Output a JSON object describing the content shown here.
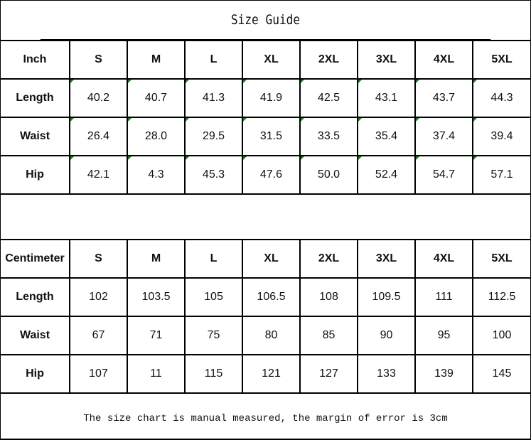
{
  "title": "Size Guide",
  "inch_table": {
    "header": [
      "Inch",
      "S",
      "M",
      "L",
      "XL",
      "2XL",
      "3XL",
      "4XL",
      "5XL"
    ],
    "rows": [
      [
        "Length",
        "40.2",
        "40.7",
        "41.3",
        "41.9",
        "42.5",
        "43.1",
        "43.7",
        "44.3"
      ],
      [
        "Waist",
        "26.4",
        "28.0",
        "29.5",
        "31.5",
        "33.5",
        "35.4",
        "37.4",
        "39.4"
      ],
      [
        "Hip",
        "42.1",
        "4.3",
        "45.3",
        "47.6",
        "50.0",
        "52.4",
        "54.7",
        "57.1"
      ]
    ]
  },
  "cm_table": {
    "header": [
      "Centimeter",
      "S",
      "M",
      "L",
      "XL",
      "2XL",
      "3XL",
      "4XL",
      "5XL"
    ],
    "rows": [
      [
        "Length",
        "102",
        "103.5",
        "105",
        "106.5",
        "108",
        "109.5",
        "111",
        "112.5"
      ],
      [
        "Waist",
        "67",
        "71",
        "75",
        "80",
        "85",
        "90",
        "95",
        "100"
      ],
      [
        "Hip",
        "107",
        "11",
        "115",
        "121",
        "127",
        "133",
        "139",
        "145"
      ]
    ]
  },
  "footer": "The size chart is manual measured, the margin of error is 3cm",
  "colors": {
    "cell_marker": "#1a7a1a"
  }
}
